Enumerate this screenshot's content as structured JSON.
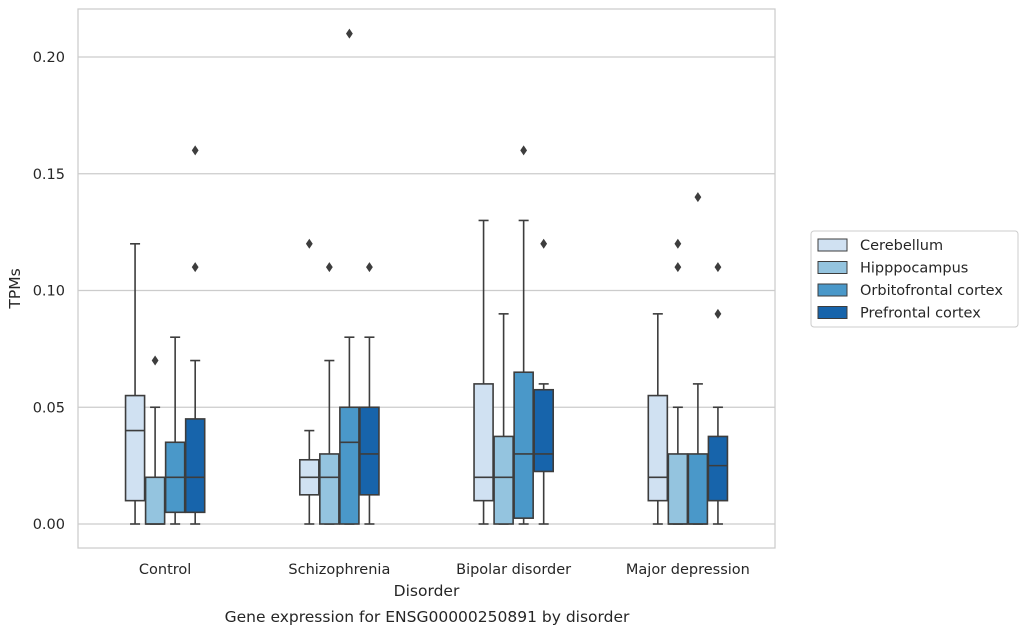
{
  "chart_data": {
    "type": "box",
    "title": "Gene expression for ENSG00000250891 by disorder",
    "xlabel": "Disorder",
    "ylabel": "TPMs",
    "ylim": [
      -0.01,
      0.22
    ],
    "yticks": [
      0.0,
      0.05,
      0.1,
      0.15,
      0.2
    ],
    "ytick_labels": [
      "0.00",
      "0.05",
      "0.10",
      "0.15",
      "0.20"
    ],
    "grid": "horizontal",
    "legend_position": "right",
    "categories": [
      "Control",
      "Schizophrenia",
      "Bipolar disorder",
      "Major depression"
    ],
    "series": [
      {
        "name": "Cerebellum",
        "color": "#d0e1f2",
        "boxes": [
          {
            "whislo": 0.0,
            "q1": 0.01,
            "med": 0.04,
            "q3": 0.055,
            "whishi": 0.12,
            "fliers": []
          },
          {
            "whislo": 0.0,
            "q1": 0.0125,
            "med": 0.02,
            "q3": 0.0275,
            "whishi": 0.04,
            "fliers": [
              0.12
            ]
          },
          {
            "whislo": 0.0,
            "q1": 0.01,
            "med": 0.02,
            "q3": 0.06,
            "whishi": 0.13,
            "fliers": []
          },
          {
            "whislo": 0.0,
            "q1": 0.01,
            "med": 0.02,
            "q3": 0.055,
            "whishi": 0.09,
            "fliers": []
          }
        ]
      },
      {
        "name": "Hipppocampus",
        "color": "#94c4df",
        "boxes": [
          {
            "whislo": 0.0,
            "q1": 0.0,
            "med": 0.0,
            "q3": 0.02,
            "whishi": 0.05,
            "fliers": [
              0.07
            ]
          },
          {
            "whislo": 0.0,
            "q1": 0.0,
            "med": 0.02,
            "q3": 0.03,
            "whishi": 0.07,
            "fliers": [
              0.11
            ]
          },
          {
            "whislo": 0.0,
            "q1": 0.0,
            "med": 0.02,
            "q3": 0.0375,
            "whishi": 0.09,
            "fliers": []
          },
          {
            "whislo": 0.0,
            "q1": 0.0,
            "med": 0.0,
            "q3": 0.03,
            "whishi": 0.05,
            "fliers": [
              0.11,
              0.12
            ]
          }
        ]
      },
      {
        "name": "Orbitofrontal cortex",
        "color": "#4a98c9",
        "boxes": [
          {
            "whislo": 0.0,
            "q1": 0.005,
            "med": 0.02,
            "q3": 0.035,
            "whishi": 0.08,
            "fliers": []
          },
          {
            "whislo": 0.0,
            "q1": 0.0,
            "med": 0.035,
            "q3": 0.05,
            "whishi": 0.08,
            "fliers": [
              0.21
            ]
          },
          {
            "whislo": 0.0,
            "q1": 0.0025,
            "med": 0.03,
            "q3": 0.065,
            "whishi": 0.13,
            "fliers": [
              0.16
            ]
          },
          {
            "whislo": 0.0,
            "q1": 0.0,
            "med": 0.0,
            "q3": 0.03,
            "whishi": 0.06,
            "fliers": [
              0.14
            ]
          }
        ]
      },
      {
        "name": "Prefrontal cortex",
        "color": "#1764ab",
        "boxes": [
          {
            "whislo": 0.0,
            "q1": 0.005,
            "med": 0.02,
            "q3": 0.045,
            "whishi": 0.07,
            "fliers": [
              0.11,
              0.16
            ]
          },
          {
            "whislo": 0.0,
            "q1": 0.0125,
            "med": 0.03,
            "q3": 0.05,
            "whishi": 0.08,
            "fliers": [
              0.11
            ]
          },
          {
            "whislo": 0.0,
            "q1": 0.0225,
            "med": 0.03,
            "q3": 0.0575,
            "whishi": 0.06,
            "fliers": [
              0.12
            ]
          },
          {
            "whislo": 0.0,
            "q1": 0.01,
            "med": 0.025,
            "q3": 0.0375,
            "whishi": 0.05,
            "fliers": [
              0.09,
              0.11
            ]
          }
        ]
      }
    ]
  }
}
